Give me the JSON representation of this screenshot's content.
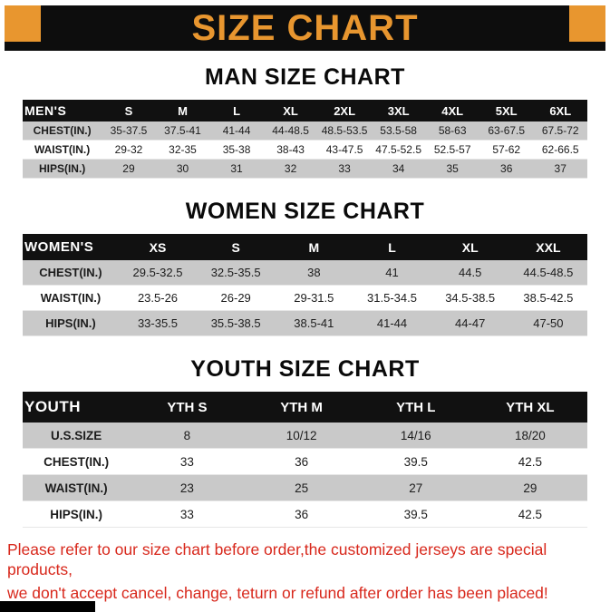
{
  "banner": {
    "title": "SIZE CHART"
  },
  "sections": [
    {
      "heading": "MAN SIZE CHART",
      "table": {
        "header": [
          "MEN'S",
          "S",
          "M",
          "L",
          "XL",
          "2XL",
          "3XL",
          "4XL",
          "5XL",
          "6XL"
        ],
        "rows": [
          [
            "CHEST(IN.)",
            "35-37.5",
            "37.5-41",
            "41-44",
            "44-48.5",
            "48.5-53.5",
            "53.5-58",
            "58-63",
            "63-67.5",
            "67.5-72"
          ],
          [
            "WAIST(IN.)",
            "29-32",
            "32-35",
            "35-38",
            "38-43",
            "43-47.5",
            "47.5-52.5",
            "52.5-57",
            "57-62",
            "62-66.5"
          ],
          [
            "HIPS(IN.)",
            "29",
            "30",
            "31",
            "32",
            "33",
            "34",
            "35",
            "36",
            "37"
          ]
        ]
      }
    },
    {
      "heading": "WOMEN SIZE CHART",
      "table": {
        "header": [
          "WOMEN'S",
          "XS",
          "S",
          "M",
          "L",
          "XL",
          "XXL"
        ],
        "rows": [
          [
            "CHEST(IN.)",
            "29.5-32.5",
            "32.5-35.5",
            "38",
            "41",
            "44.5",
            "44.5-48.5"
          ],
          [
            "WAIST(IN.)",
            "23.5-26",
            "26-29",
            "29-31.5",
            "31.5-34.5",
            "34.5-38.5",
            "38.5-42.5"
          ],
          [
            "HIPS(IN.)",
            "33-35.5",
            "35.5-38.5",
            "38.5-41",
            "41-44",
            "44-47",
            "47-50"
          ]
        ]
      }
    },
    {
      "heading": "YOUTH SIZE CHART",
      "table": {
        "header": [
          "YOUTH",
          "YTH S",
          "YTH M",
          "YTH L",
          "YTH XL"
        ],
        "rows": [
          [
            "U.S.SIZE",
            "8",
            "10/12",
            "14/16",
            "18/20"
          ],
          [
            "CHEST(IN.)",
            "33",
            "36",
            "39.5",
            "42.5"
          ],
          [
            "WAIST(IN.)",
            "23",
            "25",
            "27",
            "29"
          ],
          [
            "HIPS(IN.)",
            "33",
            "36",
            "39.5",
            "42.5"
          ]
        ]
      }
    }
  ],
  "footer": {
    "line1": "Please refer to our size chart before order,the customized jerseys are special products,",
    "line2": "we don't accept cancel, change, teturn or refund after order has been placed!"
  },
  "colors": {
    "accent_orange": "#e8962f",
    "banner_black": "#0d0d0d",
    "row_gray": "#c9c9c9",
    "footer_red": "#d8281c"
  }
}
